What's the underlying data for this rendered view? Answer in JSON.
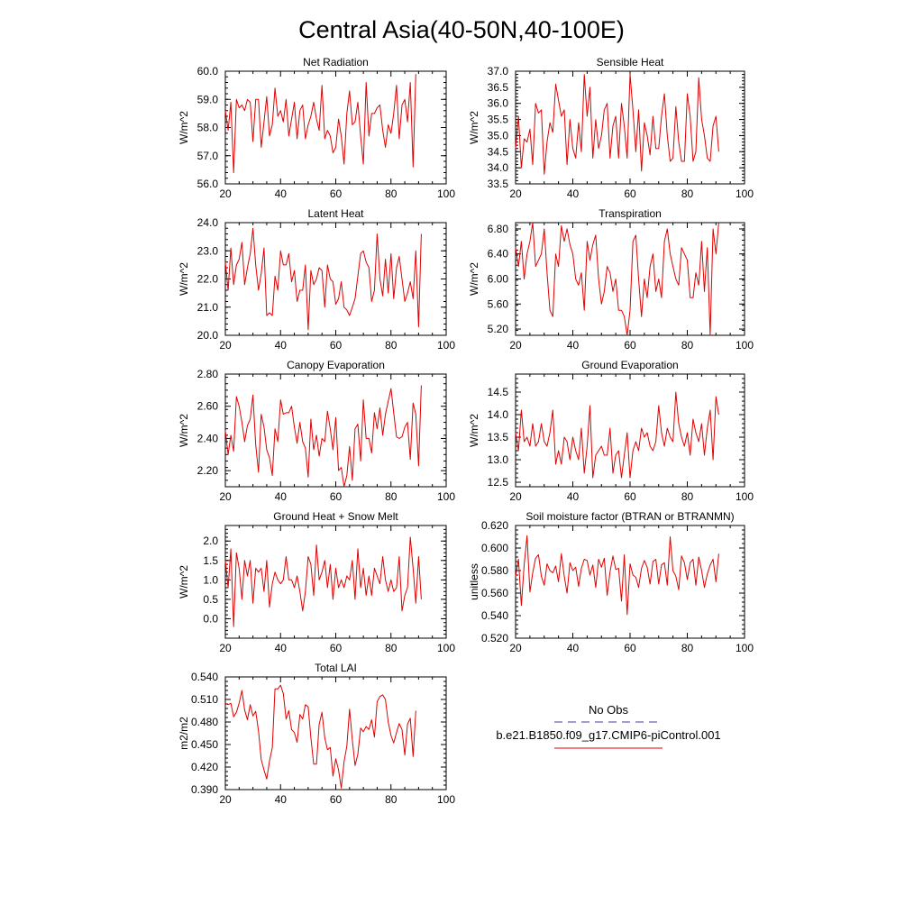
{
  "figure": {
    "title": "Central Asia(40-50N,40-100E)"
  },
  "legend": {
    "entries": [
      "No Obs",
      "b.e21.B1850.f09_g17.CMIP6-piControl.001"
    ],
    "colors": [
      "#3b3ba0",
      "#e00000"
    ]
  },
  "chart_data": [
    {
      "type": "line",
      "title": "Net Radiation",
      "ylabel": "W/m^2",
      "xlim": [
        20,
        100
      ],
      "ylim": [
        56.0,
        60.0
      ],
      "yticks": [
        56.0,
        57.0,
        58.0,
        59.0,
        60.0
      ],
      "ytick_labels": [
        "56.0",
        "57.0",
        "58.0",
        "59.0",
        "60.0"
      ],
      "xticks": [
        20,
        40,
        60,
        80,
        100
      ],
      "x_start": 20,
      "color": "#e00000",
      "values": [
        58.6,
        57.9,
        58.9,
        56.4,
        59.0,
        58.7,
        58.8,
        58.6,
        59.0,
        58.9,
        57.5,
        59.0,
        59.0,
        57.3,
        58.2,
        59.1,
        57.7,
        58.1,
        59.4,
        58.4,
        58.6,
        58.2,
        59.0,
        57.7,
        58.3,
        58.9,
        57.6,
        58.6,
        58.8,
        57.6,
        58.1,
        58.4,
        58.9,
        58.3,
        57.9,
        59.5,
        57.6,
        57.9,
        57.7,
        57.1,
        57.3,
        58.3,
        57.7,
        56.7,
        58.5,
        59.3,
        58.1,
        58.2,
        58.9,
        57.7,
        56.7,
        59.6,
        57.7,
        58.5,
        58.5,
        58.7,
        58.8,
        57.9,
        57.3,
        58.1,
        57.8,
        58.5,
        59.5,
        57.6,
        58.8,
        59.0,
        58.2,
        59.6,
        56.6,
        59.9
      ]
    },
    {
      "type": "line",
      "title": "Sensible Heat",
      "ylabel": "W/m^2",
      "xlim": [
        20,
        100
      ],
      "ylim": [
        33.5,
        37.0
      ],
      "yticks": [
        33.5,
        34.0,
        34.5,
        35.0,
        35.5,
        36.0,
        36.5,
        37.0
      ],
      "ytick_labels": [
        "33.5",
        "34.0",
        "34.5",
        "35.0",
        "35.5",
        "36.0",
        "36.5",
        "37.0"
      ],
      "xticks": [
        20,
        40,
        60,
        80,
        100
      ],
      "x_start": 20,
      "color": "#e00000",
      "values": [
        34.6,
        35.6,
        34.0,
        34.9,
        34.8,
        35.2,
        34.1,
        36.0,
        35.7,
        35.8,
        33.8,
        34.8,
        35.4,
        35.1,
        36.6,
        36.1,
        35.6,
        35.8,
        34.1,
        35.5,
        34.6,
        34.3,
        35.4,
        34.5,
        36.9,
        35.6,
        36.5,
        34.3,
        35.5,
        34.6,
        35.0,
        35.8,
        36.0,
        34.3,
        35.3,
        35.6,
        34.3,
        36.0,
        35.3,
        34.3,
        36.9,
        35.8,
        34.5,
        35.8,
        33.9,
        35.4,
        35.0,
        34.4,
        35.6,
        34.6,
        34.6,
        35.6,
        36.3,
        35.0,
        34.2,
        34.3,
        35.9,
        34.8,
        34.2,
        34.2,
        36.3,
        35.6,
        34.2,
        34.5,
        36.8,
        35.5,
        35.0,
        34.3,
        34.2,
        35.3,
        35.6,
        34.5
      ]
    },
    {
      "type": "line",
      "title": "Latent Heat",
      "ylabel": "W/m^2",
      "xlim": [
        20,
        100
      ],
      "ylim": [
        20.0,
        24.0
      ],
      "yticks": [
        20.0,
        21.0,
        22.0,
        23.0,
        24.0
      ],
      "ytick_labels": [
        "20.0",
        "21.0",
        "22.0",
        "23.0",
        "24.0"
      ],
      "xticks": [
        20,
        40,
        60,
        80,
        100
      ],
      "x_start": 20,
      "color": "#e00000",
      "values": [
        22.6,
        21.6,
        23.1,
        21.8,
        22.5,
        22.7,
        23.3,
        21.8,
        22.4,
        22.9,
        23.8,
        22.5,
        21.6,
        22.2,
        23.1,
        20.7,
        20.8,
        20.7,
        22.1,
        21.6,
        23.0,
        22.5,
        22.5,
        22.9,
        21.9,
        22.3,
        21.2,
        21.6,
        21.6,
        22.5,
        20.2,
        22.3,
        21.8,
        22.0,
        22.4,
        22.3,
        21.0,
        22.5,
        22.0,
        21.9,
        21.1,
        21.3,
        21.9,
        21.0,
        20.9,
        20.7,
        21.0,
        21.3,
        22.1,
        22.9,
        23.0,
        22.6,
        22.4,
        21.2,
        21.6,
        23.6,
        22.0,
        21.4,
        22.7,
        21.5,
        22.9,
        21.3,
        22.4,
        22.8,
        22.0,
        21.2,
        21.5,
        21.9,
        21.3,
        23.0,
        20.3,
        23.6
      ]
    },
    {
      "type": "line",
      "title": "Transpiration",
      "ylabel": "W/m^2",
      "xlim": [
        20,
        100
      ],
      "ylim": [
        5.1,
        6.9
      ],
      "yticks": [
        5.2,
        5.6,
        6.0,
        6.4,
        6.8
      ],
      "ytick_labels": [
        "5.20",
        "5.60",
        "6.00",
        "6.40",
        "6.80"
      ],
      "xticks": [
        20,
        40,
        60,
        80,
        100
      ],
      "x_start": 20,
      "color": "#e00000",
      "values": [
        6.5,
        6.2,
        6.6,
        6.0,
        6.4,
        6.6,
        6.9,
        6.2,
        6.3,
        6.4,
        6.8,
        6.1,
        5.5,
        5.4,
        6.4,
        6.2,
        6.85,
        6.6,
        6.8,
        6.55,
        6.4,
        6.0,
        5.9,
        6.1,
        5.5,
        6.6,
        6.3,
        6.55,
        6.7,
        6.0,
        5.6,
        5.8,
        6.2,
        6.1,
        5.8,
        6.0,
        5.5,
        5.5,
        5.4,
        5.1,
        5.5,
        6.6,
        6.7,
        6.0,
        5.4,
        6.0,
        5.7,
        6.2,
        6.4,
        5.8,
        6.0,
        5.7,
        6.6,
        6.8,
        6.4,
        6.2,
        6.0,
        5.9,
        6.5,
        6.4,
        6.3,
        5.7,
        5.7,
        6.1,
        5.9,
        6.6,
        5.8,
        6.5,
        5.1,
        6.8,
        6.4,
        6.9
      ]
    },
    {
      "type": "line",
      "title": "Canopy Evaporation",
      "ylabel": "W/m^2",
      "xlim": [
        20,
        100
      ],
      "ylim": [
        2.1,
        2.8
      ],
      "yticks": [
        2.2,
        2.4,
        2.6,
        2.8
      ],
      "ytick_labels": [
        "2.20",
        "2.40",
        "2.60",
        "2.80"
      ],
      "xticks": [
        20,
        40,
        60,
        80,
        100
      ],
      "x_start": 20,
      "color": "#e00000",
      "values": [
        2.45,
        2.3,
        2.42,
        2.32,
        2.66,
        2.6,
        2.5,
        2.38,
        2.48,
        2.52,
        2.67,
        2.36,
        2.19,
        2.55,
        2.47,
        2.33,
        2.28,
        2.17,
        2.46,
        2.38,
        2.64,
        2.55,
        2.56,
        2.56,
        2.6,
        2.47,
        2.37,
        2.5,
        2.38,
        2.34,
        2.16,
        2.52,
        2.33,
        2.42,
        2.29,
        2.4,
        2.38,
        2.57,
        2.46,
        2.33,
        2.53,
        2.2,
        2.22,
        2.1,
        2.17,
        2.35,
        2.14,
        2.46,
        2.49,
        2.26,
        2.64,
        2.4,
        2.4,
        2.31,
        2.56,
        2.46,
        2.59,
        2.42,
        2.55,
        2.63,
        2.71,
        2.56,
        2.41,
        2.4,
        2.41,
        2.47,
        2.5,
        2.27,
        2.62,
        2.55,
        2.23,
        2.73
      ]
    },
    {
      "type": "line",
      "title": "Ground Evaporation",
      "ylabel": "W/m^2",
      "xlim": [
        20,
        100
      ],
      "ylim": [
        12.4,
        14.9
      ],
      "yticks": [
        12.5,
        13.0,
        13.5,
        14.0,
        14.5
      ],
      "ytick_labels": [
        "12.5",
        "13.0",
        "13.5",
        "14.0",
        "14.5"
      ],
      "xticks": [
        20,
        40,
        60,
        80,
        100
      ],
      "x_start": 20,
      "color": "#e00000",
      "values": [
        13.6,
        13.2,
        14.1,
        13.4,
        13.5,
        13.3,
        13.8,
        13.3,
        13.4,
        13.8,
        13.4,
        13.3,
        13.6,
        14.1,
        12.9,
        13.2,
        12.9,
        13.5,
        13.4,
        13.0,
        13.5,
        13.2,
        13.0,
        13.7,
        12.7,
        13.3,
        14.2,
        12.6,
        13.1,
        13.2,
        13.3,
        13.1,
        13.1,
        13.7,
        12.7,
        13.1,
        13.2,
        12.6,
        13.1,
        13.6,
        12.6,
        13.2,
        13.4,
        13.2,
        13.7,
        13.5,
        13.6,
        13.3,
        13.2,
        13.4,
        14.2,
        13.6,
        13.3,
        13.7,
        13.5,
        13.4,
        14.5,
        13.8,
        13.5,
        13.3,
        13.6,
        13.1,
        13.9,
        13.6,
        13.4,
        13.8,
        13.1,
        13.7,
        14.1,
        13.0,
        14.4,
        14.0
      ]
    },
    {
      "type": "line",
      "title": "Ground Heat + Snow Melt",
      "ylabel": "W/m^2",
      "xlim": [
        20,
        100
      ],
      "ylim": [
        -0.5,
        2.4
      ],
      "yticks": [
        0.0,
        0.5,
        1.0,
        1.5,
        2.0
      ],
      "ytick_labels": [
        "0.0",
        "0.5",
        "1.0",
        "1.5",
        "2.0"
      ],
      "xticks": [
        20,
        40,
        60,
        80,
        100
      ],
      "x_start": 20,
      "color": "#e00000",
      "values": [
        1.5,
        0.8,
        1.8,
        -0.2,
        1.7,
        1.3,
        0.5,
        1.5,
        1.1,
        1.5,
        0.4,
        1.3,
        1.2,
        1.3,
        0.7,
        1.5,
        0.3,
        0.9,
        1.2,
        1.0,
        0.9,
        1.0,
        1.6,
        1.0,
        1.0,
        0.8,
        1.1,
        0.7,
        0.2,
        0.7,
        1.6,
        1.4,
        0.6,
        1.9,
        1.0,
        1.2,
        1.5,
        0.8,
        1.4,
        0.5,
        1.3,
        0.8,
        1.0,
        0.8,
        1.1,
        1.0,
        1.5,
        0.5,
        1.8,
        0.8,
        1.3,
        0.6,
        1.1,
        0.6,
        1.3,
        1.1,
        0.9,
        1.6,
        1.0,
        0.7,
        1.0,
        0.7,
        0.8,
        1.6,
        0.2,
        0.6,
        0.8,
        2.1,
        1.3,
        0.4,
        1.6,
        0.5
      ]
    },
    {
      "type": "line",
      "title": "Soil moisture factor (BTRAN or BTRANMN)",
      "ylabel": "unitless",
      "xlim": [
        20,
        100
      ],
      "ylim": [
        0.52,
        0.62
      ],
      "yticks": [
        0.52,
        0.54,
        0.56,
        0.58,
        0.6,
        0.62
      ],
      "ytick_labels": [
        "0.520",
        "0.540",
        "0.560",
        "0.580",
        "0.600",
        "0.620"
      ],
      "xticks": [
        20,
        40,
        60,
        80,
        100
      ],
      "x_start": 20,
      "color": "#e00000",
      "values": [
        0.575,
        0.59,
        0.549,
        0.585,
        0.611,
        0.561,
        0.578,
        0.591,
        0.594,
        0.575,
        0.567,
        0.586,
        0.58,
        0.578,
        0.584,
        0.57,
        0.595,
        0.575,
        0.56,
        0.587,
        0.58,
        0.583,
        0.566,
        0.582,
        0.59,
        0.589,
        0.576,
        0.585,
        0.565,
        0.59,
        0.583,
        0.591,
        0.558,
        0.579,
        0.593,
        0.581,
        0.582,
        0.553,
        0.594,
        0.541,
        0.586,
        0.576,
        0.574,
        0.565,
        0.582,
        0.589,
        0.583,
        0.568,
        0.588,
        0.59,
        0.568,
        0.585,
        0.587,
        0.567,
        0.61,
        0.58,
        0.575,
        0.563,
        0.593,
        0.587,
        0.572,
        0.587,
        0.59,
        0.567,
        0.592,
        0.58,
        0.565,
        0.577,
        0.585,
        0.59,
        0.57,
        0.595
      ]
    },
    {
      "type": "line",
      "title": "Total LAI",
      "ylabel": "m2/m2",
      "xlim": [
        20,
        100
      ],
      "ylim": [
        0.39,
        0.54
      ],
      "yticks": [
        0.39,
        0.42,
        0.45,
        0.48,
        0.51,
        0.54
      ],
      "ytick_labels": [
        "0.390",
        "0.420",
        "0.450",
        "0.480",
        "0.510",
        "0.540"
      ],
      "xticks": [
        20,
        40,
        60,
        80,
        100
      ],
      "x_start": 20,
      "color": "#e00000",
      "values": [
        0.505,
        0.503,
        0.505,
        0.487,
        0.493,
        0.505,
        0.522,
        0.496,
        0.483,
        0.503,
        0.488,
        0.494,
        0.468,
        0.43,
        0.416,
        0.404,
        0.428,
        0.446,
        0.524,
        0.524,
        0.529,
        0.518,
        0.484,
        0.495,
        0.47,
        0.466,
        0.453,
        0.49,
        0.484,
        0.503,
        0.5,
        0.459,
        0.424,
        0.424,
        0.477,
        0.493,
        0.459,
        0.443,
        0.446,
        0.408,
        0.431,
        0.416,
        0.392,
        0.427,
        0.448,
        0.497,
        0.456,
        0.422,
        0.437,
        0.472,
        0.467,
        0.474,
        0.47,
        0.483,
        0.46,
        0.507,
        0.514,
        0.516,
        0.51,
        0.48,
        0.462,
        0.452,
        0.466,
        0.478,
        0.47,
        0.436,
        0.477,
        0.485,
        0.434,
        0.495
      ]
    }
  ]
}
